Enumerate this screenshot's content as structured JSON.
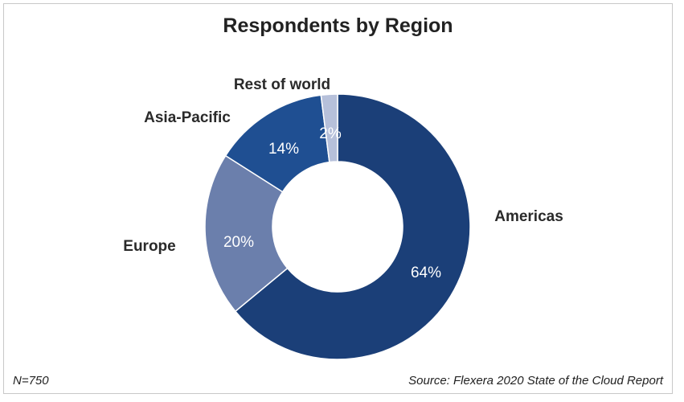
{
  "chart_data": {
    "type": "pie",
    "variant": "donut",
    "title": "Respondents by Region",
    "categories": [
      "Americas",
      "Europe",
      "Asia-Pacific",
      "Rest of world"
    ],
    "values": [
      64,
      20,
      14,
      2
    ],
    "value_labels": [
      "64%",
      "20%",
      "14%",
      "2%"
    ],
    "colors": [
      "#1b3f78",
      "#6b7fac",
      "#1f4f92",
      "#b6c0da"
    ],
    "legend": "none",
    "start_angle": "12 o'clock, clockwise"
  },
  "footer": {
    "sample_size": "N=750",
    "source": "Source: Flexera 2020 State of the Cloud Report"
  }
}
